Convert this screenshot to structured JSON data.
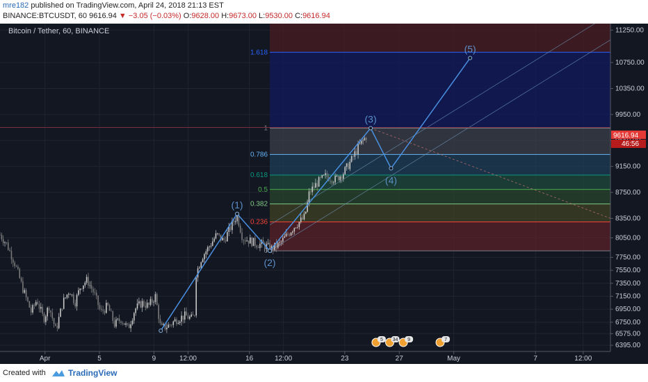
{
  "header": {
    "user": "mre182",
    "published_text": "published on TradingView.com, April 24, 2018 21:13 EST",
    "symbol": "BINANCE:BTCUSDT, 60",
    "last_price": "9616.94",
    "change": "▼ −3.05 (−0.03%)",
    "open_label": "O:",
    "open": "9628.00",
    "high_label": "H:",
    "high": "9673.00",
    "low_label": "L:",
    "low": "9530.00",
    "close_label": "C:",
    "close": "9616.94"
  },
  "footer": {
    "created_with": "Created with",
    "brand": "TradingView"
  },
  "colors": {
    "background": "#131722",
    "up": "#c9c9c9",
    "down": "#8a8a8a",
    "wave": "#4a90e2",
    "last_price": "#e53935"
  },
  "chart_data": {
    "type": "candlestick",
    "title": "Bitcoin / Tether, 60, BINANCE",
    "y_range": [
      6300,
      11350
    ],
    "y_ticks": [
      11250,
      10750,
      10350,
      9950,
      9550,
      9150,
      8750,
      8350,
      8050,
      7750,
      7550,
      7350,
      7150,
      6950,
      6750,
      6575,
      6395
    ],
    "x_ticks": [
      {
        "label": "Apr",
        "day": 1
      },
      {
        "label": "5",
        "day": 5
      },
      {
        "label": "9",
        "day": 9
      },
      {
        "label": "12:00",
        "day": 11.5
      },
      {
        "label": "16",
        "day": 16
      },
      {
        "label": "12:00",
        "day": 18.5
      },
      {
        "label": "23",
        "day": 23
      },
      {
        "label": "27",
        "day": 27
      },
      {
        "label": "May",
        "day": 31
      },
      {
        "label": "7",
        "day": 37
      },
      {
        "label": "12:00",
        "day": 40.5
      }
    ],
    "x_range_days": [
      -2.3,
      42.5
    ],
    "price_path": [
      [
        -2.3,
        8100
      ],
      [
        -1.8,
        7950
      ],
      [
        -1.2,
        7650
      ],
      [
        -0.6,
        7250
      ],
      [
        0.0,
        6900
      ],
      [
        0.4,
        7100
      ],
      [
        0.9,
        6800
      ],
      [
        1.3,
        7000
      ],
      [
        1.8,
        6620
      ],
      [
        2.3,
        7050
      ],
      [
        2.8,
        7250
      ],
      [
        3.2,
        7050
      ],
      [
        3.6,
        7300
      ],
      [
        4.1,
        7400
      ],
      [
        4.6,
        7200
      ],
      [
        5.1,
        6900
      ],
      [
        5.6,
        7000
      ],
      [
        6.1,
        6720
      ],
      [
        6.6,
        6800
      ],
      [
        7.1,
        6650
      ],
      [
        7.6,
        6950
      ],
      [
        8.1,
        7050
      ],
      [
        8.6,
        7000
      ],
      [
        9.1,
        7150
      ],
      [
        9.5,
        6650
      ],
      [
        10.1,
        6700
      ],
      [
        10.7,
        6800
      ],
      [
        11.3,
        6850
      ],
      [
        11.8,
        6800
      ],
      [
        12.0,
        6900
      ],
      [
        12.1,
        7500
      ],
      [
        12.5,
        7750
      ],
      [
        13.0,
        7900
      ],
      [
        13.6,
        8100
      ],
      [
        14.1,
        8000
      ],
      [
        14.6,
        8200
      ],
      [
        15.1,
        8400
      ],
      [
        15.5,
        8050
      ],
      [
        16.1,
        8000
      ],
      [
        16.6,
        7950
      ],
      [
        17.0,
        7950
      ],
      [
        17.6,
        7880
      ],
      [
        18.2,
        7950
      ],
      [
        18.8,
        8100
      ],
      [
        19.4,
        8250
      ],
      [
        20.0,
        8350
      ],
      [
        20.2,
        8500
      ],
      [
        20.4,
        8750
      ],
      [
        21.0,
        8900
      ],
      [
        21.6,
        9000
      ],
      [
        22.3,
        8950
      ],
      [
        22.9,
        9050
      ],
      [
        23.5,
        9250
      ],
      [
        24.0,
        9450
      ],
      [
        24.6,
        9616.94
      ]
    ],
    "waves": [
      {
        "label": "(1)",
        "day": 15.1,
        "price": 8420
      },
      {
        "label": "(2)",
        "day": 17.5,
        "price": 7850
      },
      {
        "label": "(3)",
        "day": 24.9,
        "price": 9740
      },
      {
        "label": "(4)",
        "day": 26.4,
        "price": 9120
      },
      {
        "label": "(5)",
        "day": 32.2,
        "price": 10820
      }
    ],
    "wave_start": {
      "day": 9.5,
      "price": 6620
    },
    "fib": {
      "x_start_day": 17.5,
      "levels": [
        {
          "label": "0",
          "price": 7850,
          "color": "#787b86"
        },
        {
          "label": "0.236",
          "price": 8296,
          "color": "#f44336"
        },
        {
          "label": "0.382",
          "price": 8572,
          "color": "#81c784"
        },
        {
          "label": "0.5",
          "price": 8795,
          "color": "#4caf50"
        },
        {
          "label": "0.618",
          "price": 9018,
          "color": "#089981"
        },
        {
          "label": "0.786",
          "price": 9335,
          "color": "#64b5f6"
        },
        {
          "label": "1",
          "price": 9740,
          "color": "#787b86"
        },
        {
          "label": "1.618",
          "price": 10908,
          "color": "#2962ff"
        }
      ]
    },
    "last_price_label": "9616.94",
    "countdown": "46:56",
    "event_badges": [
      {
        "day": 25.3,
        "count": "5"
      },
      {
        "day": 26.3,
        "count": "34"
      },
      {
        "day": 27.3,
        "count": "9"
      },
      {
        "day": 30.0,
        "count": "7"
      }
    ]
  }
}
